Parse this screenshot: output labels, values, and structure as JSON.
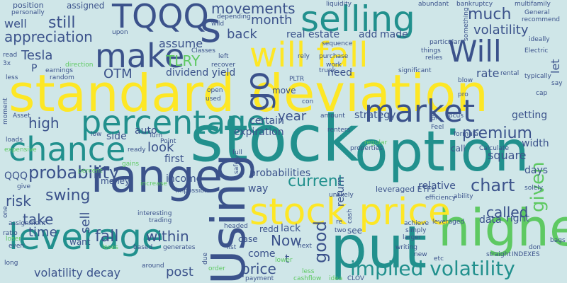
{
  "background": "#cfe6e8",
  "palette": [
    "#440154",
    "#3b528b",
    "#21908d",
    "#5ec962",
    "#fde725"
  ],
  "words": [
    {
      "text": "standard deviation",
      "color": "#fde725"
    },
    {
      "text": "stock",
      "color": "#21908d"
    },
    {
      "text": "option",
      "color": "#21908d"
    },
    {
      "text": "put",
      "color": "#21908d"
    },
    {
      "text": "Using",
      "color": "#3b528b"
    },
    {
      "text": "higher",
      "color": "#5ec962"
    },
    {
      "text": "range",
      "color": "#3b528b"
    },
    {
      "text": "selling",
      "color": "#21908d"
    },
    {
      "text": "will fall",
      "color": "#fde725"
    },
    {
      "text": "stock price",
      "color": "#fde725"
    },
    {
      "text": "percentage",
      "color": "#21908d"
    },
    {
      "text": "chance",
      "color": "#21908d"
    },
    {
      "text": "leverage",
      "color": "#21908d"
    },
    {
      "text": "market",
      "color": "#3b528b"
    },
    {
      "text": "make",
      "color": "#3b528b"
    },
    {
      "text": "TQQQ",
      "color": "#3b528b"
    },
    {
      "text": "s",
      "color": "#3b528b"
    },
    {
      "text": "Will",
      "color": "#3b528b"
    },
    {
      "text": "implied volatility",
      "color": "#21908d"
    },
    {
      "text": "go",
      "color": "#3b528b"
    },
    {
      "text": "probability",
      "color": "#3b528b"
    },
    {
      "text": "current",
      "color": "#21908d"
    },
    {
      "text": "premium",
      "color": "#3b528b"
    },
    {
      "text": "chart",
      "color": "#3b528b"
    },
    {
      "text": "good",
      "color": "#3b528b"
    },
    {
      "text": "much",
      "color": "#3b528b"
    },
    {
      "text": "movements",
      "color": "#3b528b"
    },
    {
      "text": "volatility",
      "color": "#3b528b"
    },
    {
      "text": "appreciation",
      "color": "#3b528b"
    },
    {
      "text": "still",
      "color": "#3b528b"
    },
    {
      "text": "called",
      "color": "#3b528b"
    },
    {
      "text": "within",
      "color": "#3b528b"
    },
    {
      "text": "fall",
      "color": "#3b528b"
    },
    {
      "text": "swing",
      "color": "#3b528b"
    },
    {
      "text": "risk",
      "color": "#3b528b"
    },
    {
      "text": "take",
      "color": "#3b528b"
    },
    {
      "text": "time",
      "color": "#3b528b"
    },
    {
      "text": "sell",
      "color": "#3b528b"
    },
    {
      "text": "volatility decay",
      "color": "#3b528b"
    },
    {
      "text": "post",
      "color": "#3b528b"
    },
    {
      "text": "price",
      "color": "#3b528b"
    },
    {
      "text": "Now",
      "color": "#3b528b"
    },
    {
      "text": "given",
      "color": "#5ec962"
    },
    {
      "text": "high",
      "color": "#3b528b"
    },
    {
      "text": "OTM",
      "color": "#3b528b"
    },
    {
      "text": "Tesla",
      "color": "#3b528b"
    },
    {
      "text": "TLRY",
      "color": "#5ec962"
    },
    {
      "text": "look",
      "color": "#3b528b"
    },
    {
      "text": "year",
      "color": "#3b528b"
    },
    {
      "text": "month",
      "color": "#3b528b"
    },
    {
      "text": "back",
      "color": "#3b528b"
    },
    {
      "text": "well",
      "color": "#3b528b"
    },
    {
      "text": "assume",
      "color": "#3b528b"
    },
    {
      "text": "dividend yield",
      "color": "#3b528b"
    },
    {
      "text": "real estate",
      "color": "#3b528b"
    },
    {
      "text": "made",
      "color": "#3b528b"
    },
    {
      "text": "add",
      "color": "#3b528b"
    },
    {
      "text": "rate",
      "color": "#3b528b"
    },
    {
      "text": "let",
      "color": "#3b528b"
    },
    {
      "text": "getting",
      "color": "#3b528b"
    },
    {
      "text": "square",
      "color": "#3b528b"
    },
    {
      "text": "width",
      "color": "#3b528b"
    },
    {
      "text": "days",
      "color": "#3b528b"
    },
    {
      "text": "right",
      "color": "#3b528b"
    },
    {
      "text": "data",
      "color": "#3b528b"
    },
    {
      "text": "relative",
      "color": "#3b528b"
    },
    {
      "text": "return",
      "color": "#3b528b"
    },
    {
      "text": "strategy",
      "color": "#3b528b"
    },
    {
      "text": "certain",
      "color": "#3b528b"
    },
    {
      "text": "expiration",
      "color": "#3b528b"
    },
    {
      "text": "probabilities",
      "color": "#3b528b"
    },
    {
      "text": "way",
      "color": "#3b528b"
    },
    {
      "text": "first",
      "color": "#3b528b"
    },
    {
      "text": "income",
      "color": "#3b528b"
    },
    {
      "text": "money",
      "color": "#3b528b"
    },
    {
      "text": "auto",
      "color": "#3b528b"
    },
    {
      "text": "side",
      "color": "#3b528b"
    },
    {
      "text": "QQQ",
      "color": "#3b528b"
    },
    {
      "text": "need",
      "color": "#3b528b"
    },
    {
      "text": "move",
      "color": "#3b528b"
    },
    {
      "text": "lack",
      "color": "#3b528b"
    },
    {
      "text": "case",
      "color": "#3b528b"
    },
    {
      "text": "redd",
      "color": "#3b528b"
    },
    {
      "text": "come",
      "color": "#3b528b"
    },
    {
      "text": "see",
      "color": "#3b528b"
    },
    {
      "text": "want",
      "color": "#3b528b"
    },
    {
      "text": "t",
      "color": "#3b528b"
    },
    {
      "text": "call",
      "color": "#3b528b"
    },
    {
      "text": "P",
      "color": "#3b528b"
    },
    {
      "text": "position",
      "color": "#3b528b"
    },
    {
      "text": "assigned",
      "color": "#3b528b"
    },
    {
      "text": "personally",
      "color": "#3b528b"
    },
    {
      "text": "liquidity",
      "color": "#3b528b"
    },
    {
      "text": "abundant",
      "color": "#3b528b"
    },
    {
      "text": "bankruptcy",
      "color": "#3b528b"
    },
    {
      "text": "multifamily",
      "color": "#3b528b"
    },
    {
      "text": "General",
      "color": "#3b528b"
    },
    {
      "text": "recommend",
      "color": "#3b528b"
    },
    {
      "text": "ideally",
      "color": "#3b528b"
    },
    {
      "text": "Electric",
      "color": "#3b528b"
    },
    {
      "text": "typically",
      "color": "#3b528b"
    },
    {
      "text": "say",
      "color": "#3b528b"
    },
    {
      "text": "cap",
      "color": "#3b528b"
    },
    {
      "text": "rental",
      "color": "#3b528b"
    },
    {
      "text": "blow",
      "color": "#3b528b"
    },
    {
      "text": "significant",
      "color": "#3b528b"
    },
    {
      "text": "relies",
      "color": "#3b528b"
    },
    {
      "text": "things",
      "color": "#3b528b"
    },
    {
      "text": "particular",
      "color": "#3b528b"
    },
    {
      "text": "something",
      "color": "#3b528b"
    },
    {
      "text": "sequence",
      "color": "#3b528b"
    },
    {
      "text": "wild",
      "color": "#3b528b"
    },
    {
      "text": "depending",
      "color": "#3b528b"
    },
    {
      "text": "upon",
      "color": "#3b528b"
    },
    {
      "text": "read",
      "color": "#3b528b"
    },
    {
      "text": "3x",
      "color": "#3b528b"
    },
    {
      "text": "less",
      "color": "#3b528b"
    },
    {
      "text": "earnings",
      "color": "#3b528b"
    },
    {
      "text": "random",
      "color": "#3b528b"
    },
    {
      "text": "direction",
      "color": "#5ec962"
    },
    {
      "text": "Classes",
      "color": "#3b528b"
    },
    {
      "text": "left",
      "color": "#3b528b"
    },
    {
      "text": "recover",
      "color": "#3b528b"
    },
    {
      "text": "rely",
      "color": "#3b528b"
    },
    {
      "text": "purchase",
      "color": "#3b528b"
    },
    {
      "text": "work",
      "color": "#3b528b"
    },
    {
      "text": "trunk",
      "color": "#3b528b"
    },
    {
      "text": "PLTR",
      "color": "#3b528b"
    },
    {
      "text": "open",
      "color": "#3b528b"
    },
    {
      "text": "used",
      "color": "#3b528b"
    },
    {
      "text": "con",
      "color": "#3b528b"
    },
    {
      "text": "amount",
      "color": "#3b528b"
    },
    {
      "text": "pro",
      "color": "#3b528b"
    },
    {
      "text": "got",
      "color": "#3b528b"
    },
    {
      "text": "focus",
      "color": "#3b528b"
    },
    {
      "text": "formula",
      "color": "#3b528b"
    },
    {
      "text": "Calculate",
      "color": "#3b528b"
    },
    {
      "text": "Feel",
      "color": "#3b528b"
    },
    {
      "text": "renters",
      "color": "#3b528b"
    },
    {
      "text": "regular",
      "color": "#5ec962"
    },
    {
      "text": "properties",
      "color": "#3b528b"
    },
    {
      "text": "moment",
      "color": "#3b528b"
    },
    {
      "text": "Asset",
      "color": "#3b528b"
    },
    {
      "text": "loads",
      "color": "#3b528b"
    },
    {
      "text": "low",
      "color": "#3b528b"
    },
    {
      "text": "ready",
      "color": "#3b528b"
    },
    {
      "text": "Turn",
      "color": "#3b528b"
    },
    {
      "text": "Point",
      "color": "#3b528b"
    },
    {
      "text": "full",
      "color": "#3b528b"
    },
    {
      "text": "safely",
      "color": "#3b528b"
    },
    {
      "text": "increase",
      "color": "#5ec962"
    },
    {
      "text": "expensive",
      "color": "#5ec962"
    },
    {
      "text": "give",
      "color": "#3b528b"
    },
    {
      "text": "impossible",
      "color": "#3b528b"
    },
    {
      "text": "one",
      "color": "#3b528b"
    },
    {
      "text": "assignment",
      "color": "#3b528b"
    },
    {
      "text": "ratio",
      "color": "#3b528b"
    },
    {
      "text": "loser",
      "color": "#5ec962"
    },
    {
      "text": "even",
      "color": "#3b528b"
    },
    {
      "text": "long",
      "color": "#3b528b"
    },
    {
      "text": "leveraged ETFs",
      "color": "#3b528b"
    },
    {
      "text": "unlikely",
      "color": "#3b528b"
    },
    {
      "text": "efficiency",
      "color": "#3b528b"
    },
    {
      "text": "ability",
      "color": "#3b528b"
    },
    {
      "text": "solely",
      "color": "#3b528b"
    },
    {
      "text": "cash",
      "color": "#3b528b"
    },
    {
      "text": "re",
      "color": "#3b528b"
    },
    {
      "text": "two",
      "color": "#3b528b"
    },
    {
      "text": "larger",
      "color": "#3b528b"
    },
    {
      "text": "achieve",
      "color": "#3b528b"
    },
    {
      "text": "leveraged",
      "color": "#3b528b"
    },
    {
      "text": "simply",
      "color": "#3b528b"
    },
    {
      "text": "writing",
      "color": "#3b528b"
    },
    {
      "text": "new",
      "color": "#3b528b"
    },
    {
      "text": "etc",
      "color": "#3b528b"
    },
    {
      "text": "straight",
      "color": "#3b528b"
    },
    {
      "text": "INDEXES",
      "color": "#3b528b"
    },
    {
      "text": "don",
      "color": "#3b528b"
    },
    {
      "text": "bags",
      "color": "#3b528b"
    },
    {
      "text": "interesting",
      "color": "#3b528b"
    },
    {
      "text": "trading",
      "color": "#3b528b"
    },
    {
      "text": "headed",
      "color": "#3b528b"
    },
    {
      "text": "based",
      "color": "#3b528b"
    },
    {
      "text": "generates",
      "color": "#3b528b"
    },
    {
      "text": "due",
      "color": "#3b528b"
    },
    {
      "text": "list",
      "color": "#3b528b"
    },
    {
      "text": "next",
      "color": "#3b528b"
    },
    {
      "text": "order",
      "color": "#5ec962"
    },
    {
      "text": "around",
      "color": "#3b528b"
    },
    {
      "text": "payment",
      "color": "#3b528b"
    },
    {
      "text": "cashflow",
      "color": "#5ec962"
    },
    {
      "text": "CLOV",
      "color": "#3b528b"
    },
    {
      "text": "idea",
      "color": "#5ec962"
    },
    {
      "text": "less",
      "color": "#5ec962"
    },
    {
      "text": "loses",
      "color": "#5ec962"
    },
    {
      "text": "lower",
      "color": "#5ec962"
    },
    {
      "text": "percent",
      "color": "#5ec962"
    },
    {
      "text": "gains",
      "color": "#5ec962"
    }
  ]
}
